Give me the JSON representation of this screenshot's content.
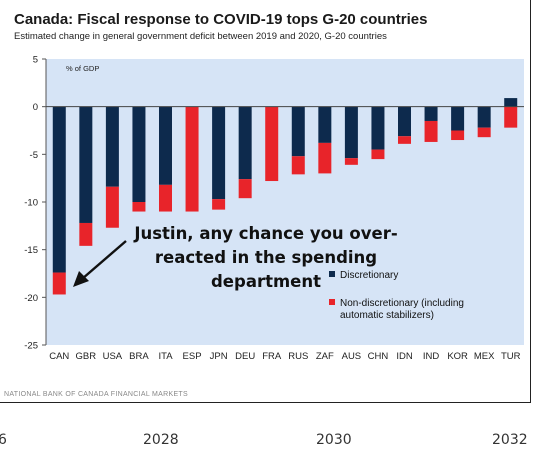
{
  "chart_data": {
    "type": "bar",
    "title": "Canada: Fiscal response to COVID-19 tops G-20 countries",
    "subtitle": "Estimated change in general government deficit between 2019 and 2020, G-20 countries",
    "ylabel": "% of GDP",
    "ylim": [
      -25,
      5
    ],
    "yticks": [
      "5",
      "0",
      "-5",
      "-10",
      "-15",
      "-20",
      "-25"
    ],
    "categories": [
      "CAN",
      "GBR",
      "USA",
      "BRA",
      "ITA",
      "ESP",
      "JPN",
      "DEU",
      "FRA",
      "RUS",
      "ZAF",
      "AUS",
      "CHN",
      "IDN",
      "IND",
      "KOR",
      "MEX",
      "TUR"
    ],
    "series": [
      {
        "name": "Discretionary",
        "color": "#0d2a4d",
        "values": [
          -17.4,
          -12.2,
          -8.4,
          -10.0,
          -8.2,
          0,
          -9.7,
          -7.6,
          0,
          -5.2,
          -3.8,
          -5.4,
          -4.5,
          -3.1,
          -1.5,
          -2.5,
          -2.2,
          0.9
        ]
      },
      {
        "name": "Non-discretionary (including automatic stabilizers)",
        "color": "#e8242a",
        "values": [
          -2.3,
          -2.4,
          -4.3,
          -1.0,
          -2.8,
          -11.0,
          -1.1,
          -2.0,
          -7.8,
          -1.9,
          -3.2,
          -0.7,
          -1.0,
          -0.8,
          -2.2,
          -1.0,
          -1.0,
          -2.2
        ]
      }
    ],
    "grid": false,
    "legend_position": "bottom-right"
  },
  "legend": {
    "discretionary": "Discretionary",
    "nondisc_line1": "Non-discretionary (including",
    "nondisc_line2": "automatic stabilizers)"
  },
  "annotation": {
    "line1": "Justin, any chance you over-",
    "line2": "reacted in the spending",
    "line3": "department"
  },
  "source": "NATIONAL BANK OF CANADA FINANCIAL MARKETS",
  "background_axis": {
    "labels": [
      "6",
      "2028",
      "2030",
      "2032"
    ]
  }
}
